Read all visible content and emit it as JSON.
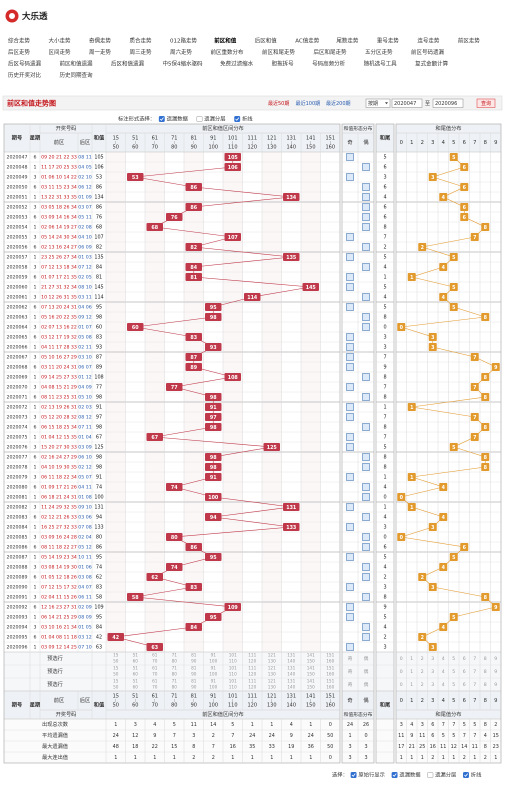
{
  "header": {
    "logo": "大乐透"
  },
  "nav": [
    [
      "综合走势",
      "大小走势",
      "奇偶走势",
      "质合走势",
      "012路走势",
      "前区和值",
      "后区和值",
      "AC值走势",
      "尾数走势",
      "重号走势",
      "连号走势",
      "前区走势"
    ],
    [
      "后区走势",
      "区间走势",
      "周一走势",
      "周三走势",
      "周六走势",
      "前区重数分布",
      "前区和尾走势",
      "后区和尾走势",
      "五分区走势",
      "前区号码遗漏"
    ],
    [
      "后区号码遗漏",
      "前区和值遗漏",
      "后区和值遗漏",
      "中5保4缩水驱码",
      "免费过滤缩水",
      "胆拖拆号",
      "号码高频分析",
      "随机选号工具",
      "复式金额计算"
    ],
    [
      "历史开奖对比",
      "历史同期查询"
    ]
  ],
  "active_nav": "前区和值",
  "title": "前区和值走势图",
  "controls": {
    "recent": [
      "最近50期",
      "最近100期",
      "最近200期"
    ],
    "mode": "按期",
    "from": "2020047",
    "to_label": "至",
    "to": "2020096",
    "query": "查询"
  },
  "marking": {
    "label": "标注形式选择：",
    "options": [
      {
        "label": "遗漏数据",
        "checked": true
      },
      {
        "label": "遗漏分层",
        "checked": false
      },
      {
        "label": "折线",
        "checked": true
      }
    ]
  },
  "table": {
    "headers": {
      "issue": "期号",
      "week": "星期",
      "numbers": "开奖号码",
      "front": "前区",
      "back": "后区",
      "sum": "和值",
      "range_group": "前区和值区间分布",
      "form_group": "和值形态分布",
      "tail": "和尾",
      "tail_group": "和尾值分布"
    },
    "ranges": [
      [
        15,
        50
      ],
      [
        51,
        60
      ],
      [
        61,
        70
      ],
      [
        71,
        80
      ],
      [
        81,
        90
      ],
      [
        91,
        100
      ],
      [
        101,
        110
      ],
      [
        111,
        120
      ],
      [
        121,
        130
      ],
      [
        131,
        140
      ],
      [
        141,
        150
      ],
      [
        151,
        160
      ]
    ],
    "form": [
      "奇",
      "偶"
    ],
    "tail_digits": [
      0,
      1,
      2,
      3,
      4,
      5,
      6,
      7,
      8,
      9
    ],
    "issues": [
      "2020047",
      "2020048",
      "2020049",
      "2020050",
      "2020051",
      "2020052",
      "2020053",
      "2020054",
      "2020055",
      "2020056",
      "2020057",
      "2020058",
      "2020059",
      "2020060",
      "2020061",
      "2020062",
      "2020063",
      "2020064",
      "2020065",
      "2020066",
      "2020067",
      "2020068",
      "2020069",
      "2020070",
      "2020071",
      "2020072",
      "2020073",
      "2020074",
      "2020075",
      "2020076",
      "2020077",
      "2020078",
      "2020079",
      "2020080",
      "2020081",
      "2020082",
      "2020083",
      "2020084",
      "2020085",
      "2020086",
      "2020087",
      "2020088",
      "2020089",
      "2020090",
      "2020091",
      "2020092",
      "2020093",
      "2020094",
      "2020095",
      "2020096"
    ],
    "weekdays": [
      6,
      1,
      3,
      6,
      1,
      3,
      6,
      1,
      3,
      6,
      1,
      3,
      6,
      1,
      3,
      6,
      1,
      3,
      6,
      1,
      3,
      6,
      1,
      3,
      6,
      1,
      3,
      6,
      1,
      3,
      6,
      1,
      3,
      6,
      1,
      3,
      6,
      1,
      3,
      6,
      1,
      3,
      6,
      1,
      3,
      6,
      1,
      3,
      6,
      1
    ],
    "front": [
      "09 20 21 22 33",
      "11 17 20 25 33",
      "01 06 10 14 22",
      "03 11 15 23 34",
      "13 22 31 33 35",
      "03 05 18 26 34",
      "03 09 14 16 34",
      "02 06 14 19 27",
      "05 14 24 30 34",
      "02 13 16 24 27",
      "23 25 26 27 34",
      "07 12 13 18 34",
      "01 07 17 21 35",
      "21 27 31 32 34",
      "10 12 26 31 35",
      "07 13 20 24 31",
      "05 16 20 22 35",
      "02 07 13 16 22",
      "03 12 17 19 32",
      "04 11 17 28 33",
      "05 10 16 27 29",
      "03 11 20 24 31",
      "09 14 25 27 33",
      "04 08 15 21 29",
      "08 11 23 25 31",
      "02 13 19 26 31",
      "05 12 20 28 32",
      "06 15 18 25 34",
      "01 04 12 15 35",
      "15 20 27 30 33",
      "02 16 24 27 29",
      "04 10 19 30 35",
      "06 11 18 22 34",
      "01 09 17 21 26",
      "06 18 21 24 31",
      "11 24 29 32 35",
      "02 12 21 26 33",
      "16 25 27 32 33",
      "03 09 16 24 28",
      "08 11 18 22 27",
      "05 14 19 23 34",
      "03 08 14 19 30",
      "01 05 12 18 26",
      "07 12 15 17 32",
      "02 04 11 15 26",
      "12 16 23 27 31",
      "06 14 21 25 29",
      "03 10 16 21 34",
      "01 04 08 11 18",
      "03 09 12 14 25"
    ],
    "back": [
      "08 11",
      "04 05",
      "02 10",
      "06 12",
      "01 09",
      "03 07",
      "05 11",
      "02 08",
      "04 10",
      "06 09",
      "01 03",
      "07 12",
      "02 05",
      "08 10",
      "03 11",
      "04 06",
      "09 12",
      "01 07",
      "05 08",
      "02 11",
      "03 10",
      "06 07",
      "01 12",
      "04 09",
      "05 10",
      "02 03",
      "08 12",
      "07 11",
      "01 04",
      "03 09",
      "06 10",
      "02 12",
      "05 07",
      "04 11",
      "01 08",
      "09 10",
      "03 06",
      "07 08",
      "02 04",
      "05 12",
      "10 11",
      "01 06",
      "03 08",
      "04 07",
      "06 11",
      "02 09",
      "08 09",
      "01 05",
      "03 12",
      "07 10"
    ],
    "sums": [
      105,
      106,
      53,
      86,
      134,
      86,
      76,
      68,
      107,
      82,
      135,
      84,
      81,
      145,
      114,
      95,
      98,
      60,
      83,
      93,
      87,
      89,
      108,
      77,
      98,
      91,
      97,
      98,
      67,
      125,
      98,
      98,
      91,
      74,
      100,
      131,
      94,
      133,
      80,
      86,
      95,
      74,
      62,
      83,
      58,
      109,
      95,
      84,
      42,
      63
    ],
    "tails": [
      5,
      6,
      3,
      6,
      4,
      6,
      6,
      8,
      7,
      2,
      5,
      4,
      1,
      5,
      4,
      5,
      8,
      0,
      3,
      3,
      7,
      9,
      8,
      7,
      8,
      1,
      7,
      8,
      7,
      5,
      8,
      8,
      1,
      4,
      0,
      1,
      4,
      3,
      0,
      6,
      5,
      4,
      2,
      3,
      8,
      9,
      5,
      4,
      2,
      3
    ],
    "preselect": [
      "预选行",
      "预选行",
      "预选行"
    ],
    "stats": [
      {
        "label": "出现总次数",
        "ranges": [
          1,
          3,
          4,
          5,
          11,
          14,
          5,
          1,
          1,
          4,
          1,
          0
        ],
        "form": [
          24,
          26
        ],
        "tails": [
          3,
          4,
          3,
          6,
          7,
          7,
          5,
          5,
          8,
          2
        ]
      },
      {
        "label": "平均遗漏值",
        "ranges": [
          24,
          12,
          9,
          7,
          3,
          2,
          7,
          24,
          24,
          9,
          24,
          50
        ],
        "form": [
          1,
          0
        ],
        "tails": [
          11,
          9,
          11,
          6,
          5,
          5,
          7,
          7,
          4,
          15
        ]
      },
      {
        "label": "最大遗漏值",
        "ranges": [
          48,
          18,
          22,
          15,
          8,
          7,
          16,
          35,
          33,
          19,
          36,
          50
        ],
        "form": [
          3,
          3
        ],
        "tails": [
          17,
          21,
          25,
          16,
          11,
          12,
          14,
          11,
          8,
          23
        ]
      },
      {
        "label": "最大连出值",
        "ranges": [
          1,
          1,
          1,
          1,
          2,
          2,
          1,
          1,
          1,
          1,
          1,
          0
        ],
        "form": [
          3,
          3
        ],
        "tails": [
          1,
          1,
          1,
          2,
          1,
          1,
          2,
          1,
          2,
          1
        ]
      }
    ]
  },
  "footer": {
    "label": "选择：",
    "options": [
      {
        "label": "原始行显示",
        "checked": true
      },
      {
        "label": "遗漏数据",
        "checked": true
      },
      {
        "label": "遗漏分层",
        "checked": false
      },
      {
        "label": "折线",
        "checked": true
      }
    ]
  }
}
